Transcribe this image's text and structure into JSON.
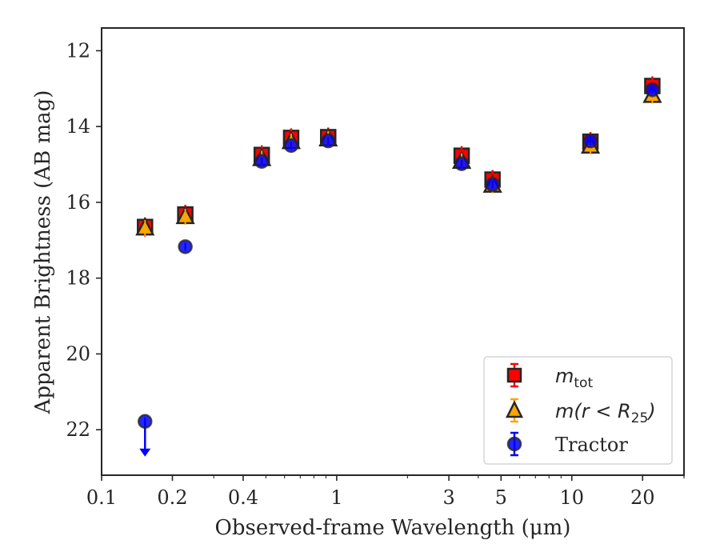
{
  "chart_data": {
    "type": "scatter",
    "title": "",
    "xlabel": "Observed-frame Wavelength (μm)",
    "ylabel": "Apparent Brightness (AB mag)",
    "xscale": "log",
    "xlim": [
      0.1,
      30
    ],
    "ylim": [
      23.2,
      11.4
    ],
    "y_inverted": true,
    "grid": false,
    "legend_position": "lower-right",
    "x_ticks": [
      0.1,
      0.2,
      0.4,
      1,
      3,
      5,
      10,
      20
    ],
    "x_tick_labels": [
      "0.1",
      "0.2",
      "0.4",
      "1",
      "3",
      "5",
      "10",
      "20"
    ],
    "y_ticks": [
      12,
      14,
      16,
      18,
      20,
      22
    ],
    "y_tick_labels": [
      "12",
      "14",
      "16",
      "18",
      "20",
      "22"
    ],
    "series": [
      {
        "name": "m_tot",
        "marker": "square",
        "color": "#ff0000",
        "edge_color": "#262626",
        "points": [
          {
            "x": 0.153,
            "y": 16.65
          },
          {
            "x": 0.227,
            "y": 16.32
          },
          {
            "x": 0.48,
            "y": 14.75
          },
          {
            "x": 0.64,
            "y": 14.3
          },
          {
            "x": 0.92,
            "y": 14.28
          },
          {
            "x": 3.4,
            "y": 14.77
          },
          {
            "x": 4.6,
            "y": 15.4
          },
          {
            "x": 12.0,
            "y": 14.4
          },
          {
            "x": 22.0,
            "y": 12.93
          }
        ]
      },
      {
        "name": "m(r<R25)",
        "marker": "triangle",
        "color": "#ffa500",
        "edge_color": "#262626",
        "points": [
          {
            "x": 0.153,
            "y": 16.68
          },
          {
            "x": 0.227,
            "y": 16.38
          },
          {
            "x": 0.48,
            "y": 14.85
          },
          {
            "x": 0.64,
            "y": 14.4
          },
          {
            "x": 0.92,
            "y": 14.33
          },
          {
            "x": 3.4,
            "y": 14.92
          },
          {
            "x": 4.6,
            "y": 15.55
          },
          {
            "x": 12.0,
            "y": 14.52
          },
          {
            "x": 22.0,
            "y": 13.18
          }
        ]
      },
      {
        "name": "Tractor",
        "marker": "circle",
        "color": "#0000ff",
        "edge_color": "#262626",
        "points": [
          {
            "x": 0.153,
            "y": 21.78,
            "upper_limit": true
          },
          {
            "x": 0.227,
            "y": 17.17
          },
          {
            "x": 0.48,
            "y": 14.92
          },
          {
            "x": 0.64,
            "y": 14.5
          },
          {
            "x": 0.92,
            "y": 14.38
          },
          {
            "x": 3.4,
            "y": 14.98
          },
          {
            "x": 4.6,
            "y": 15.53
          },
          {
            "x": 12.0,
            "y": 14.38
          },
          {
            "x": 22.0,
            "y": 13.03
          }
        ]
      }
    ],
    "legend": [
      {
        "series": "m_tot",
        "base": "m",
        "sub": "tot"
      },
      {
        "series": "m(r<R25)",
        "pre": "m(r < R",
        "sub": "25",
        "post": ")"
      },
      {
        "series": "Tractor",
        "text": "Tractor"
      }
    ]
  }
}
